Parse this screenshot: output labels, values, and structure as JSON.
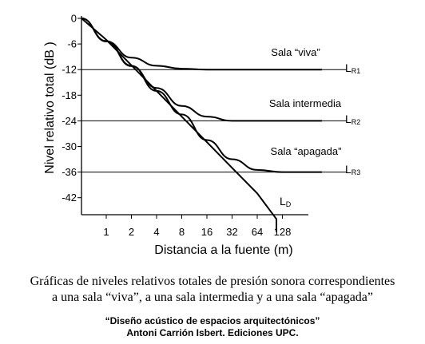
{
  "chart_data": {
    "type": "line",
    "xlabel": "Distancia a la fuente (m)",
    "ylabel": "Nivel relativo total  (dB )",
    "x_scale": "log2",
    "x_ticks": [
      "1",
      "2",
      "4",
      "8",
      "16",
      "32",
      "64",
      "128"
    ],
    "y_ticks": [
      0,
      -6,
      -12,
      -18,
      -24,
      -30,
      -36,
      -42
    ],
    "ylim": [
      -46,
      0
    ],
    "grid": false,
    "reference_levels": [
      -12,
      -24,
      -36
    ],
    "series": [
      {
        "name": "LD",
        "main": "L",
        "sub": "D",
        "x": [
          0.5,
          1,
          2,
          4,
          8,
          16,
          32,
          64,
          128,
          190
        ],
        "y": [
          0,
          -5,
          -11,
          -17,
          -23,
          -29,
          -35,
          -41,
          -47,
          -50
        ]
      },
      {
        "name": "LR1",
        "main": "L",
        "sub": "R1",
        "label": "Sala “viva”",
        "x": [
          0.5,
          1,
          2,
          4,
          8,
          16,
          32,
          64,
          128,
          380
        ],
        "y": [
          0,
          -5.4,
          -9.2,
          -11.1,
          -11.8,
          -12,
          -12,
          -12,
          -12,
          -12
        ]
      },
      {
        "name": "LR2",
        "main": "L",
        "sub": "R2",
        "label": "Sala intermedia",
        "x": [
          0.5,
          1,
          2,
          4,
          8,
          16,
          32,
          64,
          128,
          380
        ],
        "y": [
          0,
          -5.4,
          -11.2,
          -16.3,
          -20.5,
          -23,
          -24,
          -24,
          -24,
          -24
        ]
      },
      {
        "name": "LR3",
        "main": "L",
        "sub": "R3",
        "label": "Sala “apagada”",
        "x": [
          0.5,
          1,
          2,
          4,
          8,
          16,
          32,
          64,
          128,
          380
        ],
        "y": [
          0,
          -5.3,
          -11.1,
          -17,
          -22.5,
          -28.5,
          -33,
          -35.5,
          -36,
          -36
        ]
      }
    ]
  },
  "caption": {
    "line1": "Gráficas de niveles relativos totales de presión sonora correspondientes",
    "line2": "a una sala “viva”, a una sala intermedia y a una sala “apagada”"
  },
  "credit": {
    "line1": "“Diseño acústico de espacios arquitectónicos”",
    "line2": "Antoni Carrión Isbert. Ediciones UPC."
  }
}
